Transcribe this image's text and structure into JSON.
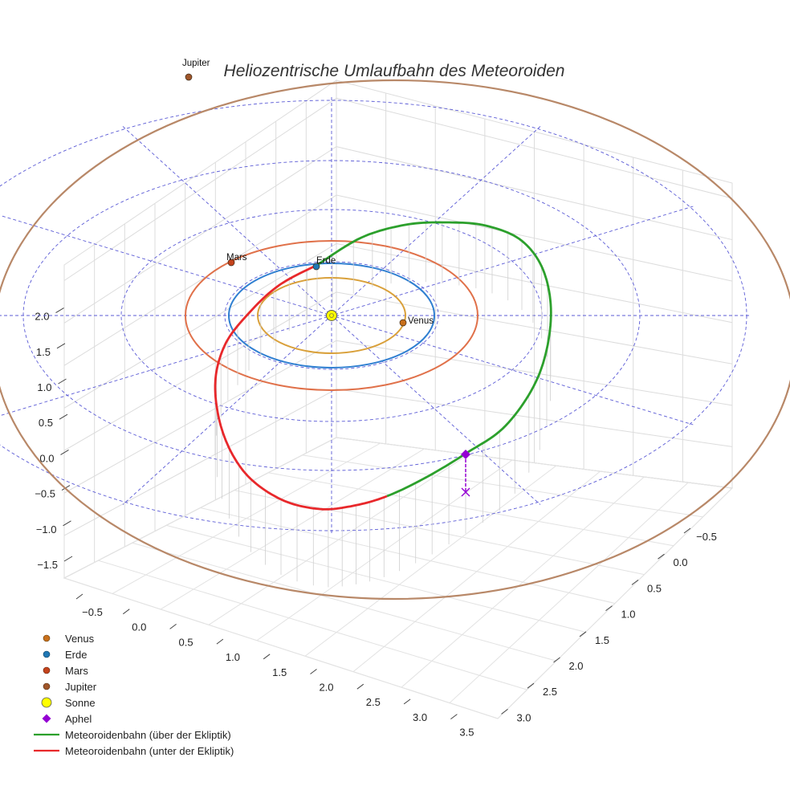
{
  "chart_data": {
    "type": "scatter",
    "title": "Heliozentrische Umlaufbahn des Meteoroiden",
    "xlabel": "",
    "ylabel": "",
    "zlabel": "",
    "x_ticks": [
      "−0.5",
      "0.0",
      "0.5",
      "1.0",
      "1.5",
      "2.0",
      "2.5",
      "3.0",
      "3.5"
    ],
    "y_ticks": [
      "−0.5",
      "0.0",
      "0.5",
      "1.0",
      "1.5",
      "2.0",
      "2.5",
      "3.0"
    ],
    "z_ticks": [
      "−1.5",
      "−1.0",
      "−0.5",
      "0.0",
      "0.5",
      "1.0",
      "1.5",
      "2.0"
    ],
    "planets": [
      {
        "name": "Venus",
        "orbit_radius_au": 0.72,
        "color": "#d9a03a",
        "marker_color": "#c9701b"
      },
      {
        "name": "Erde",
        "orbit_radius_au": 1.0,
        "color": "#2f7fd1",
        "marker_color": "#1f77b4"
      },
      {
        "name": "Mars",
        "orbit_radius_au": 1.52,
        "color": "#e0714a",
        "marker_color": "#c4431c"
      },
      {
        "name": "Jupiter",
        "orbit_radius_au": 5.2,
        "color": "#b88868",
        "marker_color": "#a0562a"
      }
    ],
    "sun": {
      "name": "Sonne",
      "x": 0,
      "y": 0,
      "z": 0,
      "color": "#ffff00"
    },
    "aphelion": {
      "name": "Aphel",
      "color": "#9400d3"
    },
    "series": [
      {
        "name": "Meteoroidenbahn (über der Ekliptik)",
        "color": "#2ca02c"
      },
      {
        "name": "Meteoroidenbahn (unter der Ekliptik)",
        "color": "#e8282b"
      }
    ],
    "grid": true,
    "legend_position": "bottom-left"
  }
}
